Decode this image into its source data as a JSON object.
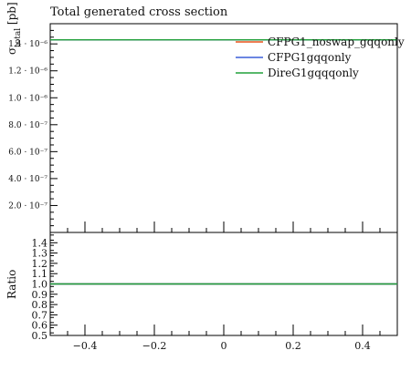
{
  "chart_data": {
    "type": "line",
    "title": "Total generated cross section",
    "main": {
      "ylabel": "σ_total [pb]",
      "ylim": [
        0,
        1.55e-06
      ],
      "yticks": [
        {
          "value": 2e-07,
          "label": "2.0 · 10⁻⁷"
        },
        {
          "value": 4e-07,
          "label": "4.0 · 10⁻⁷"
        },
        {
          "value": 6e-07,
          "label": "6.0 · 10⁻⁷"
        },
        {
          "value": 8e-07,
          "label": "8.0 · 10⁻⁷"
        },
        {
          "value": 1e-06,
          "label": "1.0 · 10⁻⁶"
        },
        {
          "value": 1.2e-06,
          "label": "1.2 · 10⁻⁶"
        },
        {
          "value": 1.4e-06,
          "label": "1.4 · 10⁻⁶"
        }
      ],
      "series": [
        {
          "name": "CFPG1_noswap_gqqonly",
          "color": "#e8541c",
          "x": [
            -0.5,
            0.5
          ],
          "y": [
            1.43e-06,
            1.43e-06
          ]
        },
        {
          "name": "CFPG1gqqonly",
          "color": "#3a5fd9",
          "x": [
            -0.5,
            0.5
          ],
          "y": [
            1.43e-06,
            1.43e-06
          ]
        },
        {
          "name": "DireG1gqqqonly",
          "color": "#21a03a",
          "x": [
            -0.5,
            0.5
          ],
          "y": [
            1.43e-06,
            1.43e-06
          ]
        }
      ],
      "legend_placement": "top-right"
    },
    "ratio": {
      "ylabel": "Ratio",
      "ylim": [
        0.5,
        1.5
      ],
      "yticks": [
        "0.5",
        "0.6",
        "0.7",
        "0.8",
        "0.9",
        "1.0",
        "1.1",
        "1.2",
        "1.3",
        "1.4"
      ],
      "series": [
        {
          "name": "CFPG1_noswap_gqqonly",
          "color": "#e8541c",
          "y": 1.0
        },
        {
          "name": "CFPG1gqqonly",
          "color": "#3a5fd9",
          "y": 1.0
        },
        {
          "name": "DireG1gqqqonly",
          "color": "#21a03a",
          "y": 1.0
        }
      ]
    },
    "xlim": [
      -0.5,
      0.5
    ],
    "xticks": [
      {
        "value": -0.4,
        "label": "−0.4"
      },
      {
        "value": -0.2,
        "label": "−0.2"
      },
      {
        "value": 0,
        "label": "0"
      },
      {
        "value": 0.2,
        "label": "0.2"
      },
      {
        "value": 0.4,
        "label": "0.4"
      }
    ],
    "grid": false
  }
}
